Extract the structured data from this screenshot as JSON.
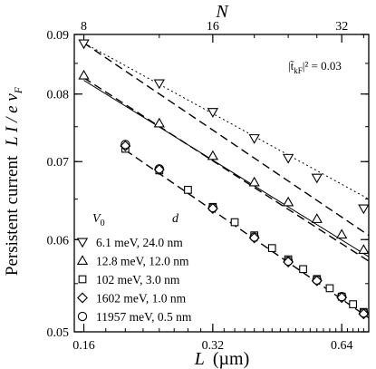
{
  "chart_data": {
    "type": "scatter",
    "xlabel_main": "L",
    "xlabel_unit": "(µm)",
    "ylabel": "Persistent current",
    "ylabel_formula": {
      "prefix": "L I / e v",
      "subscript": "F"
    },
    "top_axis_label": "N",
    "annotation": {
      "lhs": "|t̃",
      "sub": "kF",
      "rhs": "|² = 0.03"
    },
    "x_scale": "log",
    "y_scale": "log",
    "xlim": [
      0.152,
      0.74
    ],
    "ylim": [
      0.05,
      0.09
    ],
    "x_ticks": [
      {
        "value": 0.16,
        "label": "0.16"
      },
      {
        "value": 0.32,
        "label": "0.32"
      },
      {
        "value": 0.64,
        "label": "0.64"
      }
    ],
    "y_ticks": [
      {
        "value": 0.05,
        "label": "0.05"
      },
      {
        "value": 0.06,
        "label": "0.06"
      },
      {
        "value": 0.07,
        "label": "0.07"
      },
      {
        "value": 0.08,
        "label": "0.08"
      },
      {
        "value": 0.09,
        "label": "0.09"
      }
    ],
    "top_ticks": [
      {
        "value": 8,
        "label": "8"
      },
      {
        "value": 16,
        "label": "16"
      },
      {
        "value": 32,
        "label": "32"
      }
    ],
    "top_axis_L_per_N": 0.02,
    "legend_header": {
      "col1": "V",
      "col1_sub": "0",
      "col2": "d"
    },
    "series": [
      {
        "name": "6.1 meV, 24.0 nm",
        "marker": "triangle-down",
        "x": [
          0.16,
          0.24,
          0.32,
          0.4,
          0.48,
          0.56,
          0.72
        ],
        "y": [
          0.0884,
          0.0817,
          0.0772,
          0.0733,
          0.0705,
          0.0678,
          0.0638
        ]
      },
      {
        "name": "12.8 meV, 12.0 nm",
        "marker": "triangle-up",
        "x": [
          0.16,
          0.24,
          0.32,
          0.4,
          0.48,
          0.56,
          0.64,
          0.72
        ],
        "y": [
          0.083,
          0.0755,
          0.0708,
          0.0672,
          0.0646,
          0.0625,
          0.0606,
          0.0588
        ]
      },
      {
        "name": "102 meV, 3.0 nm",
        "marker": "square",
        "x": [
          0.2,
          0.24,
          0.28,
          0.32,
          0.36,
          0.4,
          0.44,
          0.48,
          0.52,
          0.56,
          0.6,
          0.64,
          0.68,
          0.72
        ],
        "y": [
          0.0718,
          0.0688,
          0.0662,
          0.064,
          0.0621,
          0.0605,
          0.059,
          0.0577,
          0.0566,
          0.0555,
          0.0545,
          0.0536,
          0.0528,
          0.052
        ]
      },
      {
        "name": "1602 meV, 1.0 nm",
        "marker": "diamond",
        "x": [
          0.2,
          0.24,
          0.32,
          0.4,
          0.48,
          0.56,
          0.64,
          0.72
        ],
        "y": [
          0.0722,
          0.0689,
          0.0638,
          0.0602,
          0.0574,
          0.0553,
          0.0535,
          0.0518
        ]
      },
      {
        "name": "11957 meV, 0.5 nm",
        "marker": "circle",
        "x": [
          0.2,
          0.24,
          0.32,
          0.4,
          0.48,
          0.56,
          0.64,
          0.72
        ],
        "y": [
          0.0724,
          0.069,
          0.0639,
          0.0603,
          0.0575,
          0.0554,
          0.0536,
          0.0519
        ]
      }
    ],
    "fit_lines": [
      {
        "style": "dotted",
        "x": [
          0.16,
          0.74
        ],
        "y": [
          0.0885,
          0.065
        ]
      },
      {
        "style": "dashed",
        "x": [
          0.16,
          0.74
        ],
        "y": [
          0.0885,
          0.0605
        ]
      },
      {
        "style": "solid",
        "x": [
          0.16,
          0.74
        ],
        "y": [
          0.0822,
          0.058
        ]
      },
      {
        "style": "dashed",
        "x": [
          0.16,
          0.74
        ],
        "y": [
          0.0826,
          0.0575
        ]
      },
      {
        "style": "dashed",
        "x": [
          0.2,
          0.74
        ],
        "y": [
          0.0716,
          0.0514
        ]
      }
    ]
  }
}
